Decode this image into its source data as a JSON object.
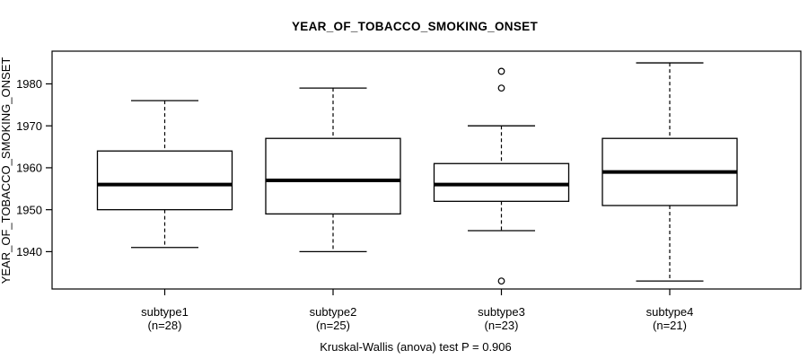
{
  "chart_data": {
    "type": "boxplot",
    "title": "YEAR_OF_TOBACCO_SMOKING_ONSET",
    "ylabel": "YEAR_OF_TOBACCO_SMOKING_ONSET",
    "xlabel": "",
    "footer": "Kruskal-Wallis (anova) test P = 0.906",
    "y_ticks": [
      1940,
      1950,
      1960,
      1970,
      1980
    ],
    "ylim": [
      1931.1,
      1987.8
    ],
    "grid": false,
    "legend": "none",
    "colors": {
      "foreground": "#000000",
      "background": "#ffffff"
    },
    "groups": [
      {
        "label": "subtype1",
        "n": 28,
        "n_label": "(n=28)",
        "whisker_low": 1941,
        "q1": 1950,
        "median": 1956,
        "q3": 1964,
        "whisker_high": 1976,
        "outliers": []
      },
      {
        "label": "subtype2",
        "n": 25,
        "n_label": "(n=25)",
        "whisker_low": 1940,
        "q1": 1949,
        "median": 1957,
        "q3": 1967,
        "whisker_high": 1979,
        "outliers": []
      },
      {
        "label": "subtype3",
        "n": 23,
        "n_label": "(n=23)",
        "whisker_low": 1945,
        "q1": 1952,
        "median": 1956,
        "q3": 1961,
        "whisker_high": 1970,
        "outliers": [
          1983,
          1979,
          1933
        ]
      },
      {
        "label": "subtype4",
        "n": 21,
        "n_label": "(n=21)",
        "whisker_low": 1933,
        "q1": 1951,
        "median": 1959,
        "q3": 1967,
        "whisker_high": 1985,
        "outliers": []
      }
    ]
  }
}
